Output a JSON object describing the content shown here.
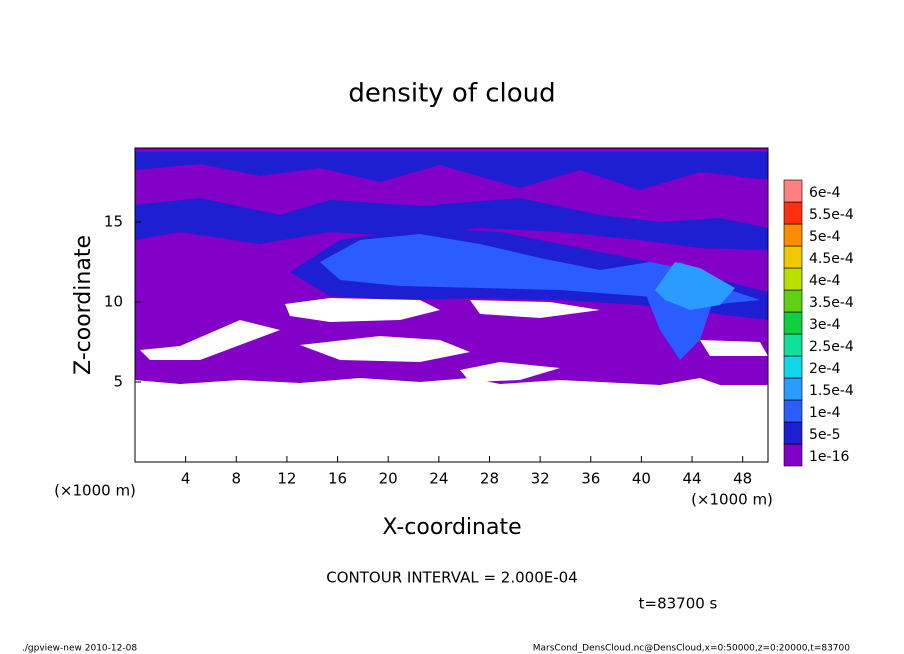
{
  "chart_data": {
    "type": "contour",
    "title": "density of cloud",
    "xlabel": "X-coordinate",
    "ylabel": "Z-coordinate",
    "unit_label": "(×1000 m)",
    "xlim": [
      0,
      50
    ],
    "xticks": [
      4,
      8,
      12,
      16,
      20,
      24,
      28,
      32,
      36,
      40,
      44,
      48
    ],
    "ylim": [
      0,
      20
    ],
    "yticks": [
      5,
      10,
      15
    ],
    "levels": [
      {
        "value": 1e-16,
        "label": "1e-16"
      },
      {
        "value": 5e-05,
        "label": "5e-5"
      },
      {
        "value": 0.0001,
        "label": "1e-4"
      },
      {
        "value": 0.00015,
        "label": "1.5e-4"
      },
      {
        "value": 0.0002,
        "label": "2e-4"
      },
      {
        "value": 0.00025,
        "label": "2.5e-4"
      },
      {
        "value": 0.0003,
        "label": "3e-4"
      },
      {
        "value": 0.00035,
        "label": "3.5e-4"
      },
      {
        "value": 0.0004,
        "label": "4e-4"
      },
      {
        "value": 0.00045,
        "label": "4.5e-4"
      },
      {
        "value": 0.0005,
        "label": "5e-4"
      },
      {
        "value": 0.00055,
        "label": "5.5e-4"
      },
      {
        "value": 0.0006,
        "label": "6e-4"
      }
    ],
    "level_colors": [
      "#8200c8",
      "#1e1ed2",
      "#2a5cff",
      "#2a9cff",
      "#10d8e8",
      "#10e09a",
      "#10d040",
      "#60d010",
      "#b8e000",
      "#f0c800",
      "#ff8c00",
      "#ff3010",
      "#ff8080"
    ],
    "annotations": [
      "CONTOUR INTERVAL = 2.000E-04",
      "t=83700 s"
    ],
    "footer_left": "./gpview-new   2010-12-08",
    "footer_right": "MarsCond_DensCloud.nc@DensCloud,x=0:50000,z=0:20000,t=83700"
  }
}
